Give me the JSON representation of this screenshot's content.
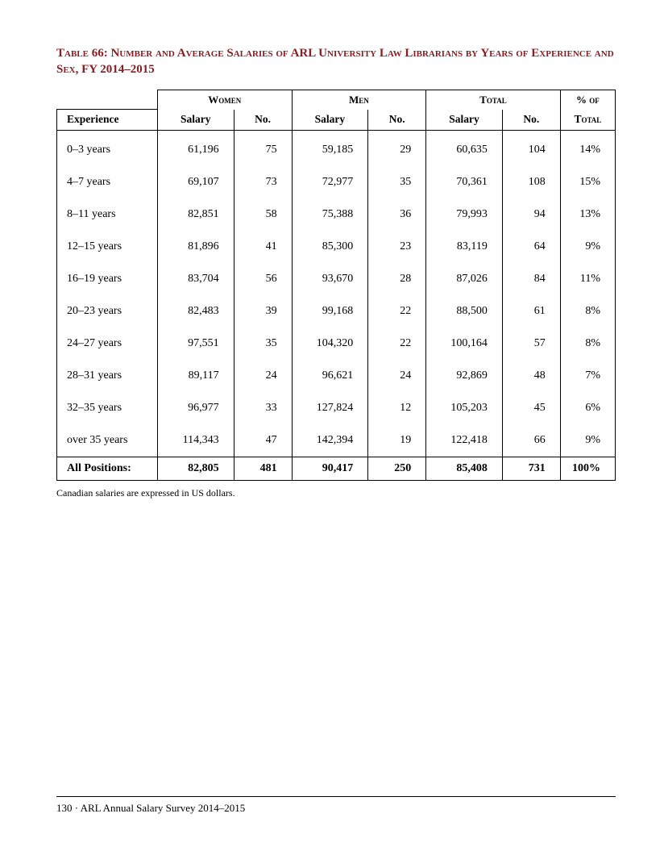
{
  "title": "Table 66: Number and Average Salaries of ARL University Law Librarians by Years of Experience and Sex, FY 2014–2015",
  "headers": {
    "experience": "Experience",
    "women": "Women",
    "men": "Men",
    "total": "Total",
    "pct_of": "% of",
    "pct_total": "Total",
    "salary": "Salary",
    "no": "No."
  },
  "rows": [
    {
      "exp": "0–3 years",
      "w_sal": "61,196",
      "w_no": "75",
      "m_sal": "59,185",
      "m_no": "29",
      "t_sal": "60,635",
      "t_no": "104",
      "pct": "14%"
    },
    {
      "exp": "4–7 years",
      "w_sal": "69,107",
      "w_no": "73",
      "m_sal": "72,977",
      "m_no": "35",
      "t_sal": "70,361",
      "t_no": "108",
      "pct": "15%"
    },
    {
      "exp": "8–11 years",
      "w_sal": "82,851",
      "w_no": "58",
      "m_sal": "75,388",
      "m_no": "36",
      "t_sal": "79,993",
      "t_no": "94",
      "pct": "13%"
    },
    {
      "exp": "12–15 years",
      "w_sal": "81,896",
      "w_no": "41",
      "m_sal": "85,300",
      "m_no": "23",
      "t_sal": "83,119",
      "t_no": "64",
      "pct": "9%"
    },
    {
      "exp": "16–19 years",
      "w_sal": "83,704",
      "w_no": "56",
      "m_sal": "93,670",
      "m_no": "28",
      "t_sal": "87,026",
      "t_no": "84",
      "pct": "11%"
    },
    {
      "exp": "20–23 years",
      "w_sal": "82,483",
      "w_no": "39",
      "m_sal": "99,168",
      "m_no": "22",
      "t_sal": "88,500",
      "t_no": "61",
      "pct": "8%"
    },
    {
      "exp": "24–27 years",
      "w_sal": "97,551",
      "w_no": "35",
      "m_sal": "104,320",
      "m_no": "22",
      "t_sal": "100,164",
      "t_no": "57",
      "pct": "8%"
    },
    {
      "exp": "28–31 years",
      "w_sal": "89,117",
      "w_no": "24",
      "m_sal": "96,621",
      "m_no": "24",
      "t_sal": "92,869",
      "t_no": "48",
      "pct": "7%"
    },
    {
      "exp": "32–35 years",
      "w_sal": "96,977",
      "w_no": "33",
      "m_sal": "127,824",
      "m_no": "12",
      "t_sal": "105,203",
      "t_no": "45",
      "pct": "6%"
    },
    {
      "exp": "over 35 years",
      "w_sal": "114,343",
      "w_no": "47",
      "m_sal": "142,394",
      "m_no": "19",
      "t_sal": "122,418",
      "t_no": "66",
      "pct": "9%"
    }
  ],
  "totals": {
    "label": "All Positions:",
    "w_sal": "82,805",
    "w_no": "481",
    "m_sal": "90,417",
    "m_no": "250",
    "t_sal": "85,408",
    "t_no": "731",
    "pct": "100%"
  },
  "footnote": "Canadian salaries are expressed in US dollars.",
  "footer": "130 · ARL Annual Salary Survey 2014–2015",
  "colors": {
    "title": "#8a1d22",
    "text": "#000000",
    "border": "#000000",
    "background": "#ffffff"
  },
  "typography": {
    "title_fontsize": 15,
    "body_fontsize": 14,
    "footnote_fontsize": 12,
    "font_family": "Palatino serif"
  }
}
